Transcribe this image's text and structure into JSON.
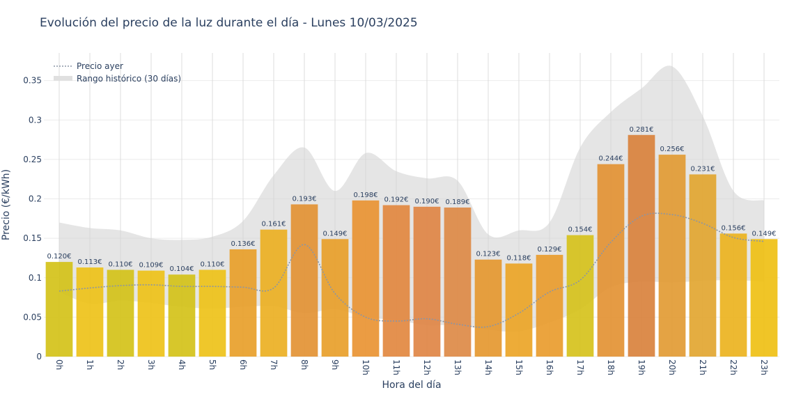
{
  "chart_data": {
    "type": "bar",
    "title": "Evolución del precio de la luz durante el día - Lunes 10/03/2025",
    "xlabel": "Hora del día",
    "ylabel": "Precio (€/kWh)",
    "ylim": [
      0,
      0.385
    ],
    "yticks": [
      0,
      0.05,
      0.1,
      0.15,
      0.2,
      0.25,
      0.3,
      0.35
    ],
    "ytick_labels": [
      "0",
      "0.05",
      "0.1",
      "0.15",
      "0.2",
      "0.25",
      "0.3",
      "0.35"
    ],
    "categories": [
      "0h",
      "1h",
      "2h",
      "3h",
      "4h",
      "5h",
      "6h",
      "7h",
      "8h",
      "9h",
      "10h",
      "11h",
      "12h",
      "13h",
      "14h",
      "15h",
      "16h",
      "17h",
      "18h",
      "19h",
      "20h",
      "21h",
      "22h",
      "23h"
    ],
    "values": [
      0.12,
      0.113,
      0.11,
      0.109,
      0.104,
      0.11,
      0.136,
      0.161,
      0.193,
      0.149,
      0.198,
      0.192,
      0.19,
      0.189,
      0.123,
      0.118,
      0.129,
      0.154,
      0.244,
      0.281,
      0.256,
      0.231,
      0.156,
      0.149
    ],
    "value_labels": [
      "0.120€",
      "0.113€",
      "0.110€",
      "0.109€",
      "0.104€",
      "0.110€",
      "0.136€",
      "0.161€",
      "0.193€",
      "0.149€",
      "0.198€",
      "0.192€",
      "0.190€",
      "0.189€",
      "0.123€",
      "0.118€",
      "0.129€",
      "0.154€",
      "0.244€",
      "0.281€",
      "0.256€",
      "0.231€",
      "0.156€",
      "0.149€"
    ],
    "bar_colors": [
      "#d4c219",
      "#eec219",
      "#d4c219",
      "#eec219",
      "#d4c219",
      "#eec219",
      "#e8a02a",
      "#ecb023",
      "#e39334",
      "#e8a02a",
      "#e99433",
      "#e28840",
      "#e08645",
      "#dd8a46",
      "#e59830",
      "#eba527",
      "#e99c2e",
      "#d6c21c",
      "#e39334",
      "#d9823d",
      "#e29b34",
      "#e2a631",
      "#ebb320",
      "#efc015"
    ],
    "series": [
      {
        "name": "Precio ayer",
        "style": "dotted line",
        "color": "#8a95a5",
        "values": [
          0.083,
          0.087,
          0.09,
          0.091,
          0.089,
          0.089,
          0.088,
          0.087,
          0.142,
          0.08,
          0.05,
          0.045,
          0.048,
          0.041,
          0.038,
          0.055,
          0.082,
          0.097,
          0.145,
          0.178,
          0.18,
          0.169,
          0.151,
          0.146
        ]
      },
      {
        "name": "Rango histórico (30 días)",
        "style": "filled band",
        "color": "#d9d9d9",
        "upper": [
          0.17,
          0.163,
          0.16,
          0.15,
          0.148,
          0.152,
          0.172,
          0.23,
          0.265,
          0.21,
          0.258,
          0.235,
          0.226,
          0.223,
          0.155,
          0.16,
          0.17,
          0.265,
          0.31,
          0.34,
          0.368,
          0.305,
          0.21,
          0.198
        ],
        "lower": [
          0.082,
          0.067,
          0.071,
          0.068,
          0.063,
          0.061,
          0.063,
          0.064,
          0.055,
          0.06,
          0.05,
          0.046,
          0.04,
          0.04,
          0.034,
          0.032,
          0.043,
          0.06,
          0.088,
          0.095,
          0.094,
          0.096,
          0.097,
          0.095
        ]
      }
    ],
    "legend": {
      "position": "top-left",
      "entries": [
        "Precio ayer",
        "Rango histórico (30 días)"
      ]
    },
    "grid": true,
    "grid_x": true
  }
}
